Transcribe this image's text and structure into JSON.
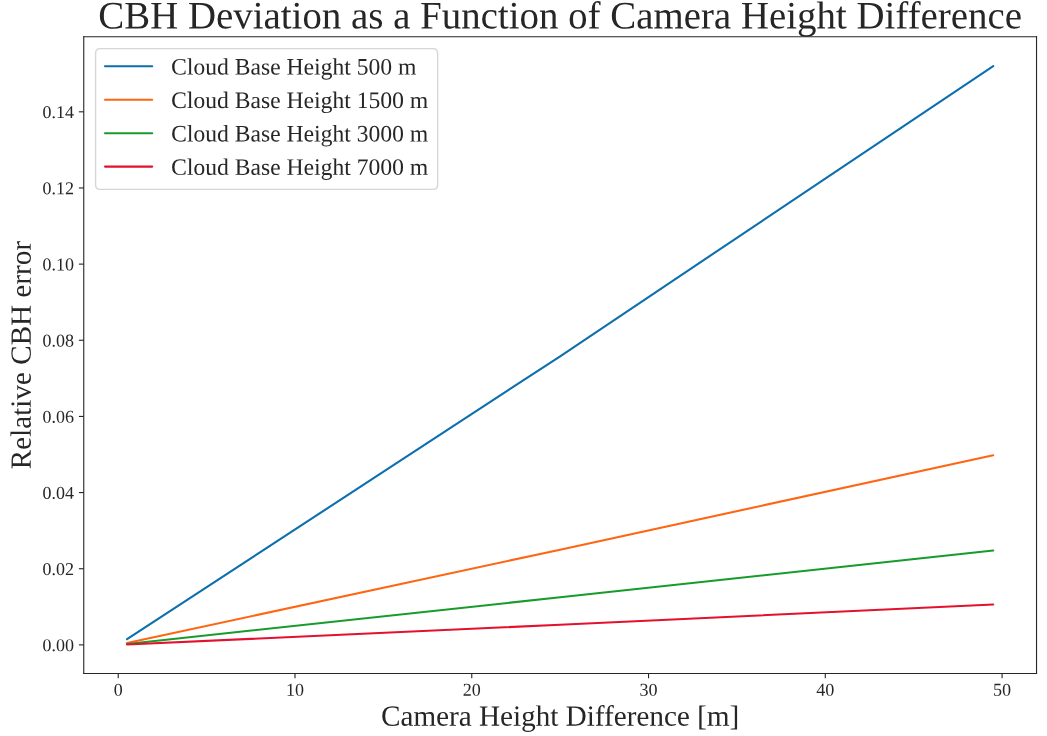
{
  "chart_data": {
    "type": "line",
    "title": "CBH Deviation as a Function of Camera Height Difference",
    "xlabel": "Camera Height Difference [m]",
    "ylabel": "Relative CBH error",
    "x": [
      0.5,
      25,
      49.5
    ],
    "series": [
      {
        "name": "Cloud Base Height 500 m",
        "color": "#0c6fae",
        "values": [
          0.0015,
          0.0758,
          0.152
        ]
      },
      {
        "name": "Cloud Base Height 1500 m",
        "color": "#ff6613",
        "values": [
          0.0005,
          0.025,
          0.0498
        ]
      },
      {
        "name": "Cloud Base Height 3000 m",
        "color": "#179b2b",
        "values": [
          0.00025,
          0.0125,
          0.0248
        ]
      },
      {
        "name": "Cloud Base Height 7000 m",
        "color": "#e3112e",
        "values": [
          0.0001,
          0.0053,
          0.0106
        ]
      }
    ],
    "xlim": [
      -1.95,
      51.95
    ],
    "ylim": [
      -0.0075,
      0.1597
    ],
    "xticks": [
      0,
      10,
      20,
      30,
      40,
      50
    ],
    "yticks": [
      {
        "value": 0,
        "label": "0.00"
      },
      {
        "value": 0.02,
        "label": "0.02"
      },
      {
        "value": 0.04,
        "label": "0.04"
      },
      {
        "value": 0.06,
        "label": "0.06"
      },
      {
        "value": 0.08,
        "label": "0.08"
      },
      {
        "value": 0.1,
        "label": "0.10"
      },
      {
        "value": 0.12,
        "label": "0.12"
      },
      {
        "value": 0.14,
        "label": "0.14"
      }
    ],
    "grid": false,
    "legend": "top left",
    "marker": "none",
    "line_style": "solid"
  }
}
